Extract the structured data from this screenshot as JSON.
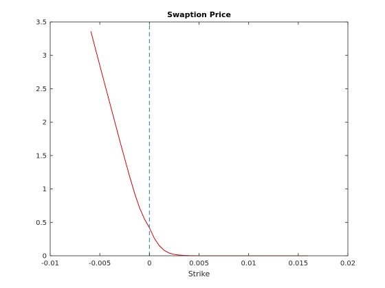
{
  "chart_data": {
    "type": "line",
    "title": "Swaption Price",
    "xlabel": "Strike",
    "ylabel": "",
    "xlim": [
      -0.01,
      0.02
    ],
    "ylim": [
      0,
      3.5
    ],
    "grid": false,
    "xticks": [
      -0.01,
      -0.005,
      0,
      0.005,
      0.01,
      0.015,
      0.02
    ],
    "xtick_labels": [
      "-0.01",
      "-0.005",
      "0",
      "0.005",
      "0.01",
      "0.015",
      "0.02"
    ],
    "yticks": [
      0,
      0.5,
      1,
      1.5,
      2,
      2.5,
      3,
      3.5
    ],
    "ytick_labels": [
      "0",
      "0.5",
      "1",
      "1.5",
      "2",
      "2.5",
      "3",
      "3.5"
    ],
    "series": [
      {
        "color": "#d40000",
        "style": "solid",
        "x": [
          -0.0059,
          -0.0055,
          -0.005,
          -0.0045,
          -0.004,
          -0.0035,
          -0.003,
          -0.0025,
          -0.002,
          -0.0015,
          -0.001,
          -0.0005,
          0,
          0.0005,
          0.001,
          0.0015,
          0.002,
          0.0025,
          0.003,
          0.0035,
          0.004,
          0.0045,
          0.005,
          0.006,
          0.008,
          0.01,
          0.012,
          0.014,
          0.016
        ],
        "y": [
          3.36,
          3.13,
          2.85,
          2.57,
          2.29,
          2.01,
          1.73,
          1.46,
          1.19,
          0.94,
          0.72,
          0.55,
          0.42,
          0.26,
          0.15,
          0.08,
          0.04,
          0.02,
          0.01,
          0.005,
          0.002,
          0.001,
          0.0,
          0.0,
          0.0,
          0.0,
          0.0,
          0.0,
          0.0
        ]
      },
      {
        "color": "#1f77b4",
        "style": "dashed",
        "x": [
          0,
          0
        ],
        "y": [
          0,
          3.5
        ]
      }
    ]
  }
}
